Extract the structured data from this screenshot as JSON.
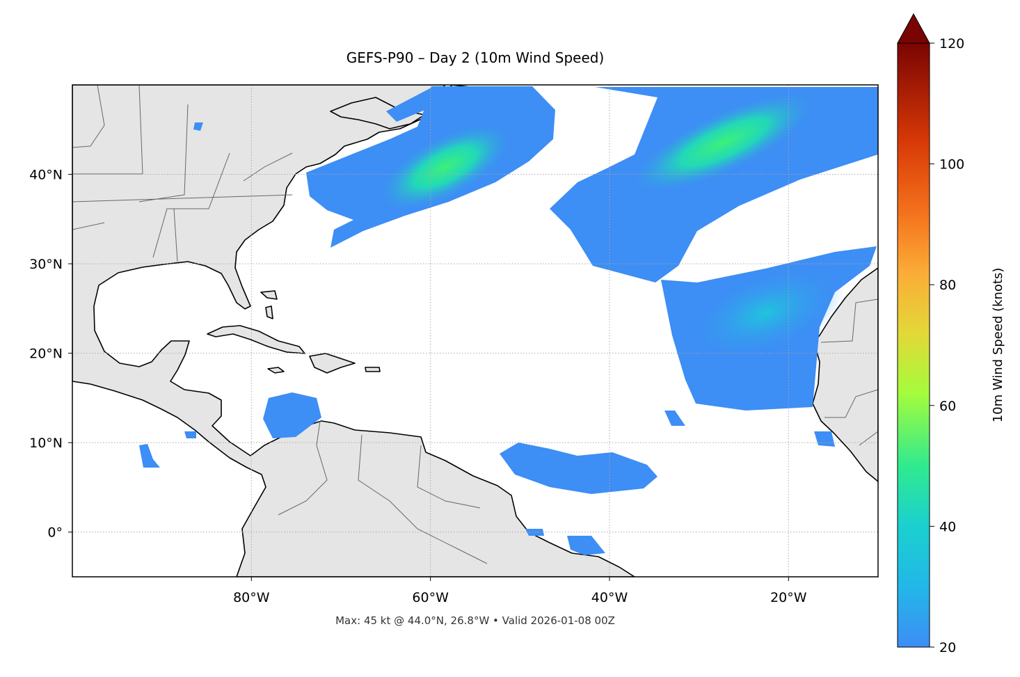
{
  "chart_data": {
    "type": "map",
    "title": "GEFS-P90 – Day 2 (10m Wind Speed)",
    "caption": "Max: 45 kt @ 44.0°N, 26.8°W • Valid 2026-01-08 00Z",
    "xlim": [
      -100,
      -10
    ],
    "ylim": [
      -5,
      50
    ],
    "xticks": [
      {
        "value": -80,
        "label": "80°W"
      },
      {
        "value": -60,
        "label": "60°W"
      },
      {
        "value": -40,
        "label": "40°W"
      },
      {
        "value": -20,
        "label": "20°W"
      }
    ],
    "yticks": [
      {
        "value": 0,
        "label": "0°"
      },
      {
        "value": 10,
        "label": "10°N"
      },
      {
        "value": 20,
        "label": "20°N"
      },
      {
        "value": 30,
        "label": "30°N"
      },
      {
        "value": 40,
        "label": "40°N"
      }
    ],
    "grid": true,
    "colorbar": {
      "label": "10m Wind Speed (knots)",
      "lim": [
        20,
        120
      ],
      "ticks": [
        20,
        40,
        60,
        80,
        100,
        120
      ],
      "extend": "max"
    }
  }
}
